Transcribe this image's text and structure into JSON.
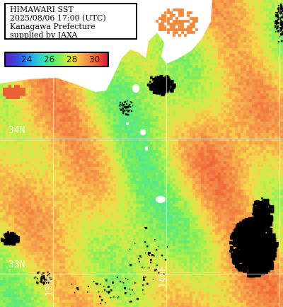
{
  "title_box": {
    "line1": "HIMAWARI SST",
    "line2": "2025/08/06 17:00 (UTC)",
    "line3": "Kanagawa Prefecture",
    "line4": "supplied by JAXA"
  },
  "legend": {
    "labels": [
      "24",
      "26",
      "28",
      "30"
    ],
    "colors": [
      "#5a1fbd",
      "#22a8ee",
      "#6eed62",
      "#f6d84a",
      "#f59a4a",
      "#d9143a"
    ]
  },
  "grid_labels": {
    "lat_34": "34N",
    "lat_33": "33N",
    "lon_139": "139E",
    "lon_140": "140E"
  },
  "colors": {
    "land": "#ffffff",
    "cloud": "#000000",
    "grid": "#ffffff"
  }
}
